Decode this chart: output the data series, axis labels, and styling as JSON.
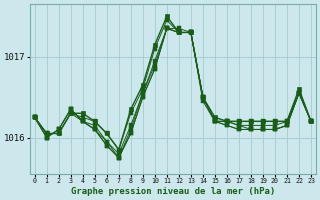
{
  "bg_color": "#cce8ec",
  "grid_color": "#aacdd4",
  "line_color": "#1a5c1a",
  "marker_color": "#1a5c1a",
  "xlabel": "Graphe pression niveau de la mer (hPa)",
  "yticks": [
    1016,
    1017
  ],
  "xticks": [
    0,
    1,
    2,
    3,
    4,
    5,
    6,
    7,
    8,
    9,
    10,
    11,
    12,
    13,
    14,
    15,
    16,
    17,
    18,
    19,
    20,
    21,
    22,
    23
  ],
  "ylim": [
    1015.55,
    1017.65
  ],
  "xlim": [
    -0.4,
    23.4
  ],
  "series": [
    [
      1016.25,
      1016.05,
      1016.05,
      1016.3,
      1016.25,
      1016.2,
      1016.05,
      1015.85,
      1016.3,
      1016.6,
      1017.1,
      1017.45,
      1017.3,
      1017.3,
      1016.45,
      1016.2,
      1016.2,
      1016.2,
      1016.2,
      1016.2,
      1016.2,
      1016.2,
      1016.55,
      1016.2
    ],
    [
      1016.25,
      1016.05,
      1016.05,
      1016.3,
      1016.2,
      1016.15,
      1015.95,
      1015.8,
      1016.15,
      1016.55,
      1016.95,
      1017.35,
      1017.35,
      1017.3,
      1016.5,
      1016.2,
      1016.2,
      1016.15,
      1016.15,
      1016.15,
      1016.15,
      1016.2,
      1016.55,
      1016.2
    ],
    [
      1016.25,
      1016.0,
      1016.1,
      1016.35,
      1016.2,
      1016.1,
      1015.95,
      1015.75,
      1016.1,
      1016.55,
      1016.9,
      1017.35,
      1017.3,
      1017.3,
      1016.5,
      1016.2,
      1016.2,
      1016.15,
      1016.1,
      1016.1,
      1016.1,
      1016.15,
      1016.55,
      1016.2
    ],
    [
      1016.25,
      1016.0,
      1016.1,
      1016.35,
      1016.2,
      1016.1,
      1015.9,
      1015.75,
      1016.05,
      1016.5,
      1016.85,
      1017.35,
      1017.3,
      1017.3,
      1016.5,
      1016.2,
      1016.15,
      1016.1,
      1016.1,
      1016.1,
      1016.1,
      1016.15,
      1016.55,
      1016.2
    ],
    [
      1016.25,
      1016.0,
      1016.1,
      1016.35,
      1016.2,
      1016.1,
      1015.9,
      1015.75,
      1016.05,
      1016.5,
      1016.85,
      1017.35,
      1017.3,
      1017.3,
      1016.5,
      1016.2,
      1016.15,
      1016.1,
      1016.1,
      1016.1,
      1016.1,
      1016.15,
      1016.55,
      1016.2
    ]
  ],
  "main_series": [
    1016.25,
    1016.05,
    1016.05,
    1016.3,
    1016.3,
    1016.2,
    1016.05,
    1015.85,
    1016.35,
    1016.65,
    1017.15,
    1017.5,
    1017.3,
    1017.3,
    1016.5,
    1016.25,
    1016.2,
    1016.2,
    1016.2,
    1016.2,
    1016.2,
    1016.2,
    1016.6,
    1016.2
  ],
  "marker_size": 2.5
}
